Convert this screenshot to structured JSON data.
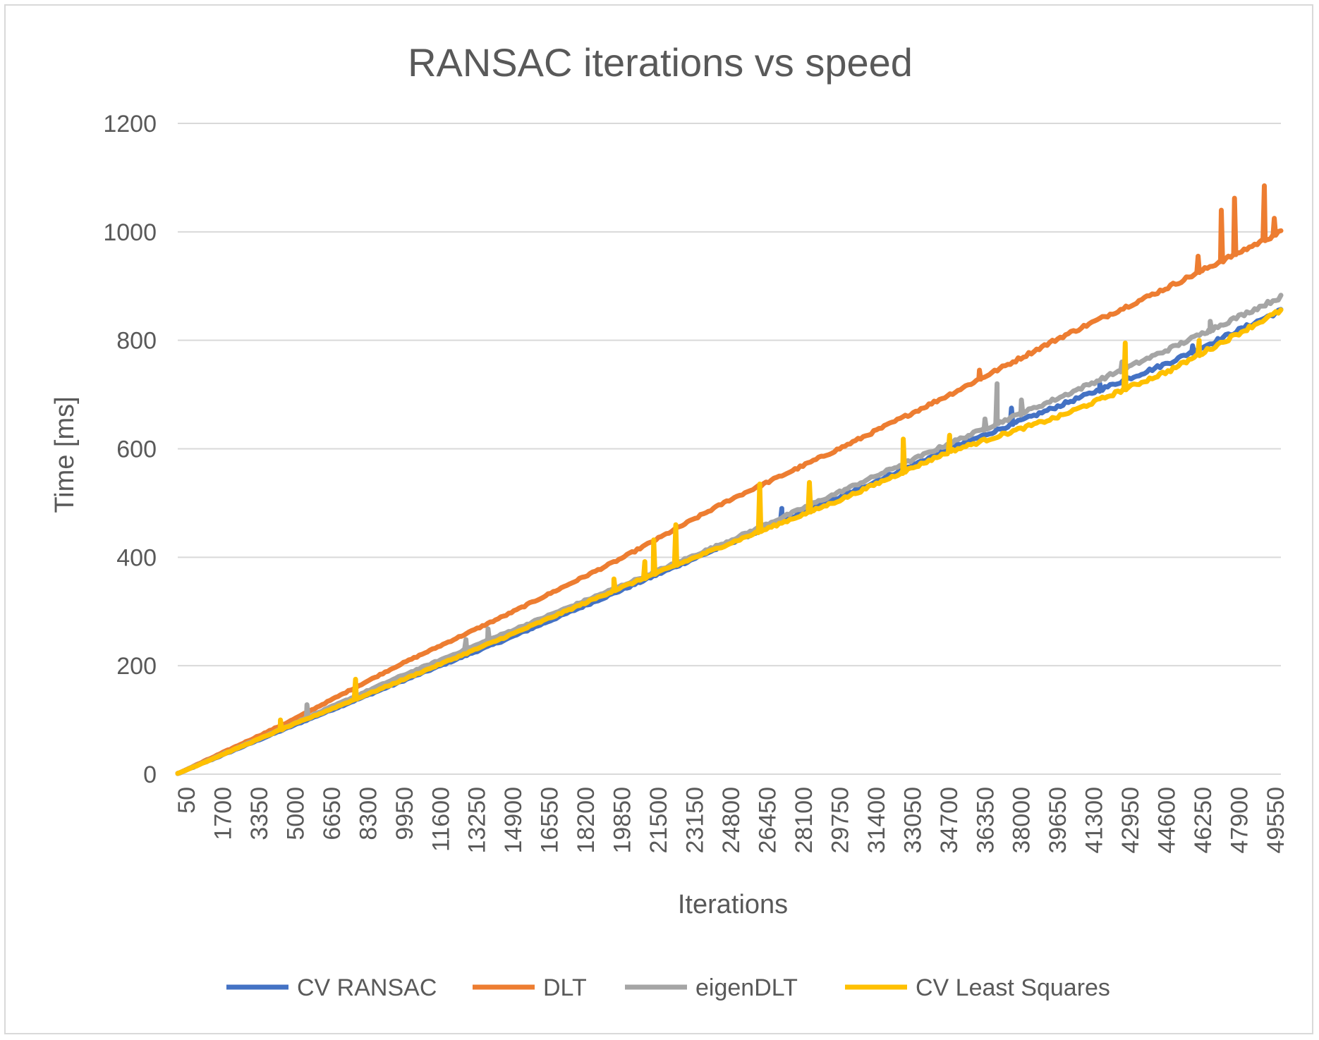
{
  "chart_data": {
    "type": "line",
    "title": "RANSAC iterations vs speed",
    "xlabel": "Iterations",
    "ylabel": "Time [ms]",
    "ylim": [
      0,
      1200
    ],
    "yticks": [
      0,
      200,
      400,
      600,
      800,
      1000,
      1200
    ],
    "xlim": [
      50,
      50000
    ],
    "xtick_labels": [
      "50",
      "1700",
      "3350",
      "5000",
      "6650",
      "8300",
      "9950",
      "11600",
      "13250",
      "14900",
      "16550",
      "18200",
      "19850",
      "21500",
      "23150",
      "24800",
      "26450",
      "28100",
      "29750",
      "31400",
      "33050",
      "34700",
      "36350",
      "38000",
      "39650",
      "41300",
      "42950",
      "44600",
      "46250",
      "47900",
      "49550"
    ],
    "grid": true,
    "legend_position": "bottom",
    "x": [
      50,
      5000,
      10000,
      15000,
      20000,
      25000,
      30000,
      35000,
      40000,
      45000,
      50000
    ],
    "series": [
      {
        "name": "CV RANSAC",
        "color": "#4472C4",
        "values": [
          1,
          85,
          168,
          250,
          337,
          425,
          510,
          600,
          680,
          760,
          855
        ],
        "spikes": [
          [
            27400,
            490
          ],
          [
            37800,
            675
          ],
          [
            41800,
            720
          ],
          [
            46000,
            790
          ]
        ]
      },
      {
        "name": "DLT",
        "color": "#ED7D31",
        "values": [
          1,
          95,
          200,
          295,
          395,
          505,
          600,
          700,
          805,
          900,
          1000
        ],
        "spikes": [
          [
            36350,
            745
          ],
          [
            46250,
            955
          ],
          [
            47300,
            1040
          ],
          [
            47900,
            1062
          ],
          [
            49250,
            1085
          ],
          [
            49700,
            1025
          ]
        ]
      },
      {
        "name": "eigenDLT",
        "color": "#A5A5A5",
        "values": [
          1,
          88,
          178,
          262,
          345,
          430,
          520,
          610,
          695,
          785,
          880
        ],
        "spikes": [
          [
            5900,
            128
          ],
          [
            13100,
            248
          ],
          [
            14100,
            268
          ],
          [
            36600,
            655
          ],
          [
            37150,
            720
          ],
          [
            38250,
            690
          ],
          [
            42800,
            760
          ],
          [
            46800,
            835
          ]
        ]
      },
      {
        "name": "CV Least Squares",
        "color": "#FFC000",
        "values": [
          1,
          87,
          170,
          255,
          342,
          425,
          505,
          595,
          660,
          745,
          855
        ],
        "spikes": [
          [
            4700,
            100
          ],
          [
            8100,
            175
          ],
          [
            19800,
            360
          ],
          [
            21200,
            392
          ],
          [
            21600,
            432
          ],
          [
            22600,
            460
          ],
          [
            26400,
            535
          ],
          [
            28650,
            538
          ],
          [
            32900,
            618
          ],
          [
            35000,
            625
          ],
          [
            42950,
            795
          ],
          [
            46300,
            800
          ]
        ]
      }
    ]
  }
}
